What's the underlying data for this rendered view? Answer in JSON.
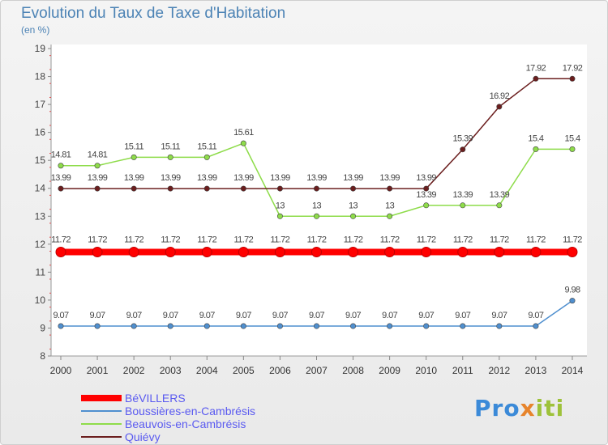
{
  "header": {
    "title": "Evolution du Taux de Taxe d'Habitation",
    "subtitle": "(en %)"
  },
  "chart_data": {
    "type": "line",
    "title": "Evolution du Taux de Taxe d'Habitation",
    "ylabel": "(en %)",
    "xlabel": "",
    "ylim": [
      8,
      19
    ],
    "yticks": [
      8,
      9,
      10,
      11,
      12,
      13,
      14,
      15,
      16,
      17,
      18,
      19
    ],
    "grid": false,
    "categories": [
      "2000",
      "2001",
      "2002",
      "2003",
      "2004",
      "2005",
      "2006",
      "2007",
      "2008",
      "2009",
      "2010",
      "2011",
      "2012",
      "2013",
      "2014"
    ],
    "series": [
      {
        "name": "BéVILLERS",
        "color": "#ff0000",
        "values": [
          11.72,
          11.72,
          11.72,
          11.72,
          11.72,
          11.72,
          11.72,
          11.72,
          11.72,
          11.72,
          11.72,
          11.72,
          11.72,
          11.72,
          11.72
        ],
        "labels": [
          "11.72",
          "11.72",
          "11.72",
          "11.72",
          "11.72",
          "11.72",
          "11.72",
          "11.72",
          "11.72",
          "11.72",
          "11.72",
          "11.72",
          "11.72",
          "11.72",
          "11.72"
        ]
      },
      {
        "name": "Boussières-en-Cambrésis",
        "color": "#4f8fcf",
        "values": [
          9.07,
          9.07,
          9.07,
          9.07,
          9.07,
          9.07,
          9.07,
          9.07,
          9.07,
          9.07,
          9.07,
          9.07,
          9.07,
          9.07,
          9.98
        ],
        "labels": [
          "9.07",
          "9.07",
          "9.07",
          "9.07",
          "9.07",
          "9.07",
          "9.07",
          "9.07",
          "9.07",
          "9.07",
          "9.07",
          "9.07",
          "9.07",
          "9.07",
          "9.98"
        ]
      },
      {
        "name": "Beauvois-en-Cambrésis",
        "color": "#8edc4a",
        "values": [
          14.81,
          14.81,
          15.11,
          15.11,
          15.11,
          15.61,
          13,
          13,
          13,
          13,
          13.39,
          13.39,
          13.39,
          15.4,
          15.4
        ],
        "labels": [
          "14.81",
          "14.81",
          "15.11",
          "15.11",
          "15.11",
          "15.61",
          "13",
          "13",
          "13",
          "13",
          "13.39",
          "13.39",
          "13.39",
          "15.4",
          "15.4"
        ]
      },
      {
        "name": "Quiévy",
        "color": "#6b1e1e",
        "values": [
          13.99,
          13.99,
          13.99,
          13.99,
          13.99,
          13.99,
          13.99,
          13.99,
          13.99,
          13.99,
          13.99,
          15.39,
          16.92,
          17.92,
          17.92
        ],
        "labels": [
          "13.99",
          "13.99",
          "13.99",
          "13.99",
          "13.99",
          "13.99",
          "13.99",
          "13.99",
          "13.99",
          "13.99",
          "13.99",
          "15.39",
          "16.92",
          "17.92",
          "17.92"
        ]
      }
    ]
  },
  "legend": {
    "items": [
      {
        "label": "BéVILLERS",
        "color": "#ff0000"
      },
      {
        "label": "Boussières-en-Cambrésis",
        "color": "#4f8fcf"
      },
      {
        "label": "Beauvois-en-Cambrésis",
        "color": "#8edc4a"
      },
      {
        "label": "Quiévy",
        "color": "#6b1e1e"
      }
    ]
  },
  "logo": {
    "part1": "Pro",
    "part2": "x",
    "part3": "iti"
  }
}
